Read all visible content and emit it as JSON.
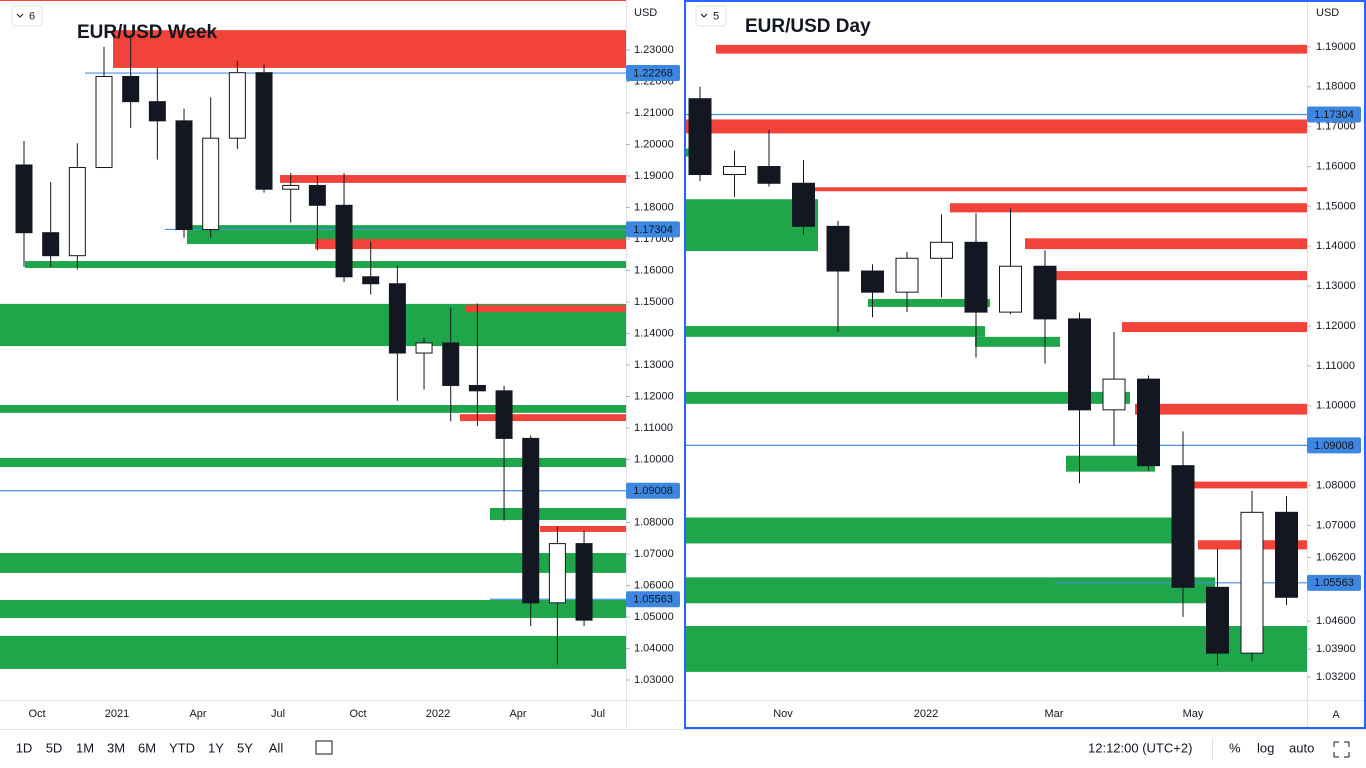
{
  "chart_data": [
    {
      "type": "candlestick",
      "title": "EUR/USD Week",
      "badge": "6",
      "currency": "USD",
      "xlabels": [
        "Oct",
        "2021",
        "Apr",
        "Jul",
        "Oct",
        "2022",
        "Apr",
        "Jul"
      ],
      "ylim": [
        1.02365,
        1.24587
      ],
      "yticks": [
        {
          "value": 1.23,
          "label": "1.23000"
        },
        {
          "value": 1.22,
          "label": "1.22000"
        },
        {
          "value": 1.21,
          "label": "1.21000"
        },
        {
          "value": 1.2,
          "label": "1.20000"
        },
        {
          "value": 1.19,
          "label": "1.19000"
        },
        {
          "value": 1.18,
          "label": "1.18000"
        },
        {
          "value": 1.17,
          "label": "1.17000"
        },
        {
          "value": 1.16,
          "label": "1.16000"
        },
        {
          "value": 1.15,
          "label": "1.15000"
        },
        {
          "value": 1.14,
          "label": "1.14000"
        },
        {
          "value": 1.13,
          "label": "1.13000"
        },
        {
          "value": 1.12,
          "label": "1.12000"
        },
        {
          "value": 1.11,
          "label": "1.11000"
        },
        {
          "value": 1.1,
          "label": "1.10000"
        },
        {
          "value": 1.09,
          "label": "1.09000"
        },
        {
          "value": 1.08,
          "label": "1.08000"
        },
        {
          "value": 1.07,
          "label": "1.07000"
        },
        {
          "value": 1.06,
          "label": "1.06000"
        },
        {
          "value": 1.05,
          "label": "1.05000"
        },
        {
          "value": 1.04,
          "label": "1.04000"
        },
        {
          "value": 1.03,
          "label": "1.03000"
        }
      ],
      "open": [
        1.1935,
        1.172,
        1.1647,
        1.1927,
        1.2216,
        1.2136,
        1.2075,
        1.173,
        1.202,
        1.2228,
        1.1858,
        1.187,
        1.1807,
        1.158,
        1.1558,
        1.1338,
        1.137,
        1.1235,
        1.1218,
        1.1067,
        1.0545,
        1.0733
      ],
      "high": [
        1.2011,
        1.1881,
        1.2004,
        1.231,
        1.2349,
        1.2243,
        1.2114,
        1.215,
        1.2266,
        1.2254,
        1.1909,
        1.19,
        1.1909,
        1.1692,
        1.1616,
        1.1386,
        1.1483,
        1.1495,
        1.1234,
        1.1076,
        1.0787,
        1.0774
      ],
      "low": [
        1.1612,
        1.1612,
        1.1603,
        1.1925,
        1.2053,
        1.1952,
        1.1704,
        1.1704,
        1.1986,
        1.1847,
        1.1752,
        1.1664,
        1.1563,
        1.1524,
        1.1186,
        1.1222,
        1.1121,
        1.1106,
        1.0806,
        1.0471,
        1.0349,
        1.0471
      ],
      "close": [
        1.172,
        1.1647,
        1.1927,
        1.2216,
        1.2136,
        1.2075,
        1.173,
        1.202,
        1.2228,
        1.1858,
        1.187,
        1.1807,
        1.158,
        1.1558,
        1.1338,
        1.137,
        1.1235,
        1.1218,
        1.1067,
        1.0545,
        1.0733,
        1.049
      ],
      "zones": [
        {
          "low": 1.2243,
          "high": 1.2363,
          "color": "#f2433a"
        },
        {
          "low": 1.1878,
          "high": 1.1903,
          "color": "#f2433a"
        },
        {
          "low": 1.1684,
          "high": 1.1744,
          "color": "#1fa64b"
        },
        {
          "low": 1.1668,
          "high": 1.17,
          "color": "#f2433a"
        },
        {
          "low": 1.1608,
          "high": 1.163,
          "color": "#1fa64b"
        },
        {
          "low": 1.136,
          "high": 1.1494,
          "color": "#1fa64b"
        },
        {
          "low": 1.1468,
          "high": 1.149,
          "color": "#f2433a"
        },
        {
          "low": 1.1148,
          "high": 1.1173,
          "color": "#1fa64b"
        },
        {
          "low": 1.1122,
          "high": 1.1144,
          "color": "#f2433a"
        },
        {
          "low": 1.0976,
          "high": 1.1005,
          "color": "#1fa64b"
        },
        {
          "low": 1.0808,
          "high": 1.0846,
          "color": "#1fa64b"
        },
        {
          "low": 1.077,
          "high": 1.0789,
          "color": "#f2433a"
        },
        {
          "low": 1.064,
          "high": 1.0703,
          "color": "#1fa64b"
        },
        {
          "low": 1.0497,
          "high": 1.0554,
          "color": "#1fa64b"
        },
        {
          "low": 1.0335,
          "high": 1.044,
          "color": "#1fa64b"
        }
      ],
      "levels": [
        1.22268,
        1.17304,
        1.09008,
        1.05563
      ],
      "level_color": "#4a8fe0"
    },
    {
      "type": "candlestick",
      "title": "EUR/USD Day",
      "badge": "5",
      "currency": "USD",
      "xlabels": [
        "Nov",
        "2022",
        "Mar",
        "May"
      ],
      "ylim": [
        1.02625,
        1.20125
      ],
      "yticks": [
        {
          "value": 1.19,
          "label": "1.19000"
        },
        {
          "value": 1.18,
          "label": "1.18000"
        },
        {
          "value": 1.17,
          "label": "1.17000"
        },
        {
          "value": 1.16,
          "label": "1.16000"
        },
        {
          "value": 1.15,
          "label": "1.15000"
        },
        {
          "value": 1.14,
          "label": "1.14000"
        },
        {
          "value": 1.13,
          "label": "1.13000"
        },
        {
          "value": 1.12,
          "label": "1.12000"
        },
        {
          "value": 1.11,
          "label": "1.11000"
        },
        {
          "value": 1.1,
          "label": "1.10000"
        },
        {
          "value": 1.09,
          "label": "1.09000"
        },
        {
          "value": 1.08,
          "label": "1.08000"
        },
        {
          "value": 1.07,
          "label": "1.07000"
        },
        {
          "value": 1.062,
          "label": "1.06200"
        },
        {
          "value": 1.046,
          "label": "1.04600"
        },
        {
          "value": 1.039,
          "label": "1.03900"
        },
        {
          "value": 1.032,
          "label": "1.03200"
        }
      ],
      "open": [
        1.177,
        1.158,
        1.16,
        1.1558,
        1.145,
        1.1338,
        1.1285,
        1.137,
        1.141,
        1.1235,
        1.135,
        1.1218,
        1.099,
        1.1067,
        1.085,
        1.0545,
        1.038,
        1.0733
      ],
      "high": [
        1.18,
        1.164,
        1.1692,
        1.1616,
        1.1464,
        1.1355,
        1.1386,
        1.148,
        1.1483,
        1.1495,
        1.139,
        1.1234,
        1.1185,
        1.1076,
        1.0936,
        1.0642,
        1.0787,
        1.0774
      ],
      "low": [
        1.1563,
        1.1524,
        1.155,
        1.143,
        1.1186,
        1.1222,
        1.1235,
        1.1272,
        1.1121,
        1.123,
        1.1106,
        1.0806,
        1.09,
        1.0837,
        1.0471,
        1.0349,
        1.036,
        1.05
      ],
      "close": [
        1.158,
        1.16,
        1.1558,
        1.145,
        1.1338,
        1.1285,
        1.137,
        1.141,
        1.1235,
        1.135,
        1.1218,
        1.099,
        1.1067,
        1.085,
        1.0545,
        1.038,
        1.0733,
        1.052
      ],
      "zones": [
        {
          "low": 1.1883,
          "high": 1.1905,
          "color": "#f2433a"
        },
        {
          "low": 1.1683,
          "high": 1.1718,
          "color": "#f2433a"
        },
        {
          "low": 1.1625,
          "high": 1.1645,
          "color": "#1fa64b"
        },
        {
          "low": 1.1538,
          "high": 1.1548,
          "color": "#f2433a"
        },
        {
          "low": 1.1388,
          "high": 1.1518,
          "color": "#1fa64b"
        },
        {
          "low": 1.1485,
          "high": 1.1508,
          "color": "#f2433a"
        },
        {
          "low": 1.1393,
          "high": 1.142,
          "color": "#f2433a"
        },
        {
          "low": 1.1315,
          "high": 1.1338,
          "color": "#f2433a"
        },
        {
          "low": 1.1248,
          "high": 1.1268,
          "color": "#1fa64b"
        },
        {
          "low": 1.1185,
          "high": 1.121,
          "color": "#f2433a"
        },
        {
          "low": 1.1173,
          "high": 1.12,
          "color": "#1fa64b"
        },
        {
          "low": 1.1148,
          "high": 1.1173,
          "color": "#1fa64b"
        },
        {
          "low": 1.1005,
          "high": 1.1035,
          "color": "#1fa64b"
        },
        {
          "low": 1.0978,
          "high": 1.1005,
          "color": "#f2433a"
        },
        {
          "low": 1.0835,
          "high": 1.0875,
          "color": "#1fa64b"
        },
        {
          "low": 1.0793,
          "high": 1.081,
          "color": "#f2433a"
        },
        {
          "low": 1.0655,
          "high": 1.072,
          "color": "#1fa64b"
        },
        {
          "low": 1.064,
          "high": 1.0663,
          "color": "#f2433a"
        },
        {
          "low": 1.0505,
          "high": 1.057,
          "color": "#1fa64b"
        },
        {
          "low": 1.0333,
          "high": 1.0448,
          "color": "#1fa64b"
        }
      ],
      "levels": [
        1.17304,
        1.09008,
        1.05563
      ],
      "level_color": "#4a8fe0"
    }
  ],
  "toolbar": {
    "ranges": [
      "1D",
      "5D",
      "1M",
      "3M",
      "6M",
      "YTD",
      "1Y",
      "5Y",
      "All"
    ],
    "time": "12:12:00 (UTC+2)",
    "percent": "%",
    "log": "log",
    "auto": "auto",
    "axis_mode": "A"
  }
}
